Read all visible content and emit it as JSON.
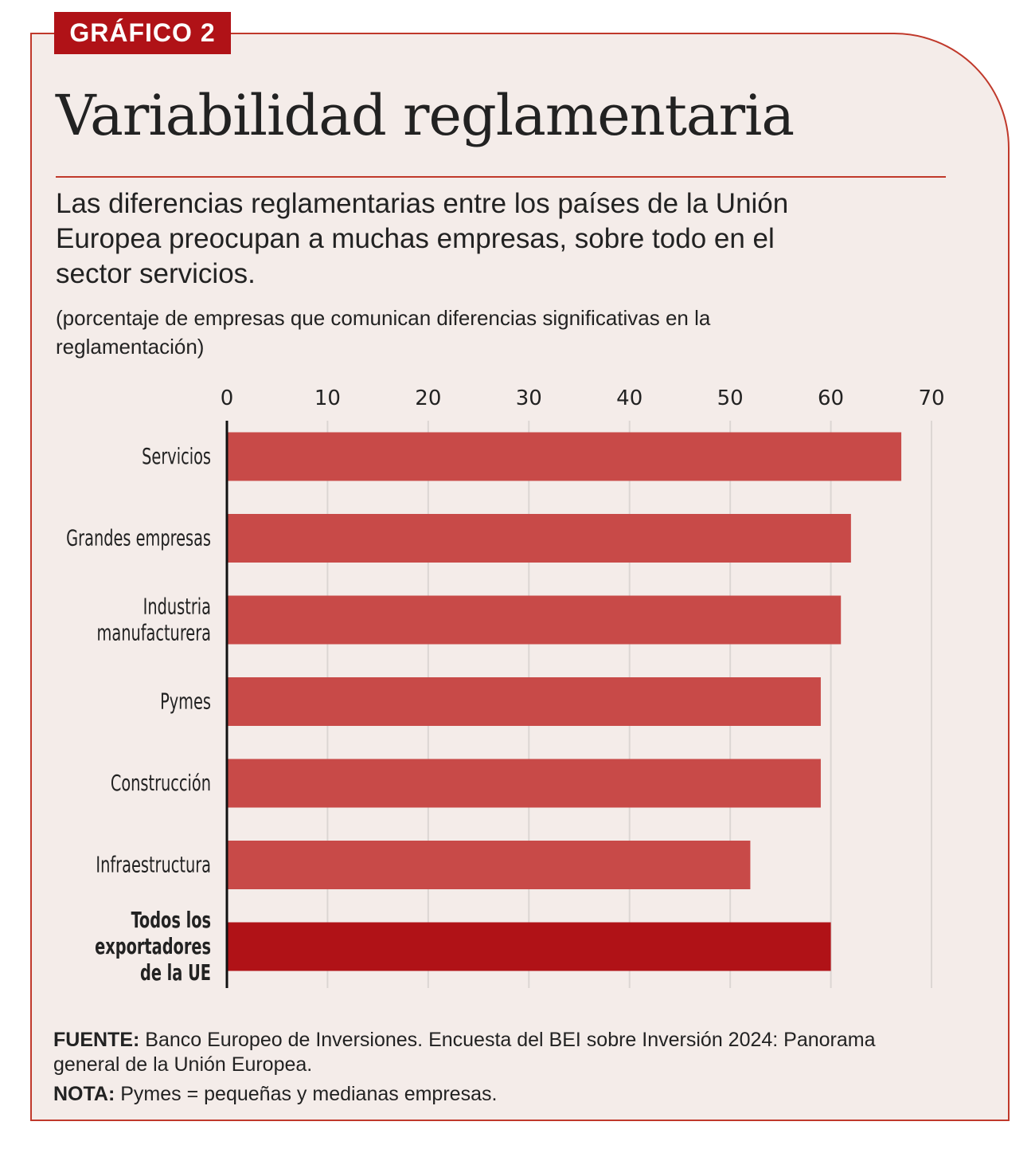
{
  "badge": "GRÁFICO 2",
  "title": "Variabilidad reglamentaria",
  "subtitle": "Las diferencias reglamentarias entre los países de la Unión Europea preocupan a muchas empresas, sobre todo en el sector servicios.",
  "units": "(porcentaje de empresas que comunican diferencias significativas en la reglamentación)",
  "footer": {
    "source_label": "FUENTE:",
    "source_text": "Banco Europeo de Inversiones. Encuesta del BEI sobre Inversión 2024: Panorama general de la Unión Europea.",
    "note_label": "NOTA:",
    "note_text": "Pymes = pequeñas y medianas empresas."
  },
  "colors": {
    "bar": "#c84a48",
    "highlight": "#b01217",
    "frame": "#c0392b",
    "background": "#f4ece9"
  },
  "chart_data": {
    "type": "bar",
    "orientation": "horizontal",
    "categories": [
      [
        "Servicios"
      ],
      [
        "Grandes empresas"
      ],
      [
        "Industria",
        "manufacturera"
      ],
      [
        "Pymes"
      ],
      [
        "Construcción"
      ],
      [
        "Infraestructura"
      ],
      [
        "Todos los",
        "exportadores",
        "de la UE"
      ]
    ],
    "values": [
      67,
      62,
      61,
      59,
      59,
      52,
      60
    ],
    "highlighted": [
      false,
      false,
      false,
      false,
      false,
      false,
      true
    ],
    "xlim": [
      0,
      70
    ],
    "xticks": [
      "0",
      "10",
      "20",
      "30",
      "40",
      "50",
      "60",
      "70"
    ],
    "axis_position": "top",
    "grid": true
  }
}
